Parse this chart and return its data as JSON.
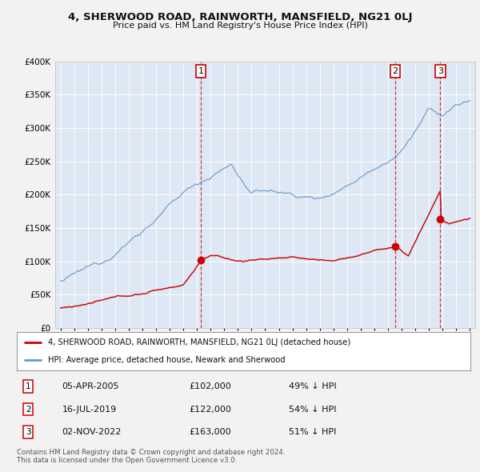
{
  "title": "4, SHERWOOD ROAD, RAINWORTH, MANSFIELD, NG21 0LJ",
  "subtitle": "Price paid vs. HM Land Registry's House Price Index (HPI)",
  "legend_red": "4, SHERWOOD ROAD, RAINWORTH, MANSFIELD, NG21 0LJ (detached house)",
  "legend_blue": "HPI: Average price, detached house, Newark and Sherwood",
  "footer_line1": "Contains HM Land Registry data © Crown copyright and database right 2024.",
  "footer_line2": "This data is licensed under the Open Government Licence v3.0.",
  "transactions": [
    {
      "num": 1,
      "date": "05-APR-2005",
      "price": "£102,000",
      "pct": "49% ↓ HPI",
      "year_x": 2005.27,
      "price_val": 102000
    },
    {
      "num": 2,
      "date": "16-JUL-2019",
      "price": "£122,000",
      "pct": "54% ↓ HPI",
      "year_x": 2019.54,
      "price_val": 122000
    },
    {
      "num": 3,
      "date": "02-NOV-2022",
      "price": "£163,000",
      "pct": "51% ↓ HPI",
      "year_x": 2022.84,
      "price_val": 163000
    }
  ],
  "ylim": [
    0,
    400000
  ],
  "xlim_start": 1994.6,
  "xlim_end": 2025.4,
  "bg_color": "#f0f0f0",
  "plot_bg": "#dde8f4",
  "red_color": "#cc0000",
  "blue_color": "#6699cc",
  "grid_color": "#ffffff",
  "yticks": [
    0,
    50000,
    100000,
    150000,
    200000,
    250000,
    300000,
    350000,
    400000
  ]
}
